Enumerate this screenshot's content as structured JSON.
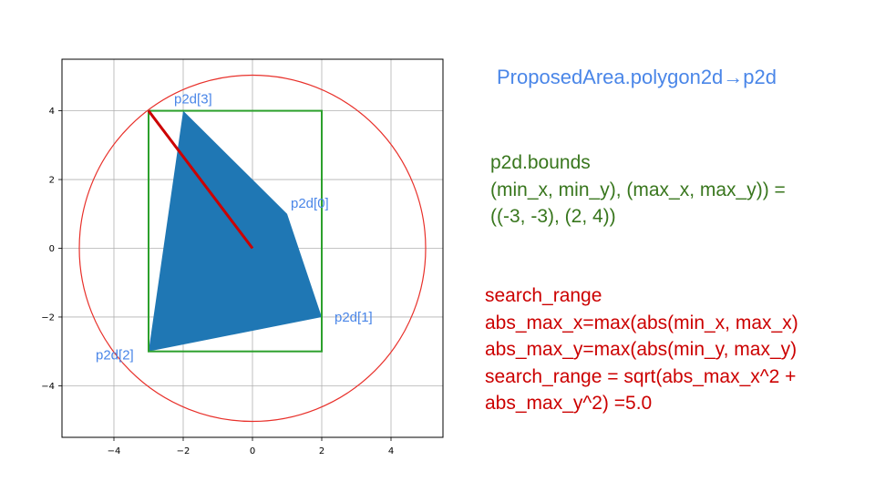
{
  "title": "ProposedArea.polygon2d→p2d",
  "bounds_text": {
    "lines": [
      "p2d.bounds",
      "(min_x, min_y), (max_x, max_y)) =",
      "((-3, -3), (2, 4))"
    ]
  },
  "search_text": {
    "lines": [
      "search_range",
      "abs_max_x=max(abs(min_x, max_x)",
      "abs_max_y=max(abs(min_y, max_y)",
      "search_range = sqrt(abs_max_x^2 +",
      "abs_max_y^2) =5.0"
    ]
  },
  "chart_data": {
    "type": "diagram",
    "xlim": [
      -5.5,
      5.5
    ],
    "ylim": [
      -5.5,
      5.5
    ],
    "x_ticks": [
      -4,
      -2,
      0,
      2,
      4
    ],
    "y_ticks": [
      -4,
      -2,
      0,
      2,
      4
    ],
    "x_tick_labels": [
      "−4",
      "−2",
      "0",
      "2",
      "4"
    ],
    "y_tick_labels": [
      "−4",
      "−2",
      "0",
      "2",
      "4"
    ],
    "grid": true,
    "polygon": {
      "vertices": [
        [
          1,
          1
        ],
        [
          2,
          -2
        ],
        [
          -3,
          -3
        ],
        [
          -2,
          4
        ],
        [
          0,
          2
        ]
      ],
      "color": "#1f77b4"
    },
    "vertex_labels": [
      {
        "text": "p2d[0]",
        "x": 1,
        "y": 1
      },
      {
        "text": "p2d[1]",
        "x": 2,
        "y": -2
      },
      {
        "text": "p2d[2]",
        "x": -3,
        "y": -3
      },
      {
        "text": "p2d[3]",
        "x": -2,
        "y": 4
      }
    ],
    "bounds_rect": {
      "min_x": -3,
      "min_y": -3,
      "max_x": 2,
      "max_y": 4,
      "color": "#2ca02c"
    },
    "circle": {
      "cx": 0,
      "cy": 0,
      "r": 5.0,
      "color": "#e8302a"
    },
    "radius_line": {
      "from": [
        0,
        0
      ],
      "to": [
        -3,
        4
      ],
      "color": "#cc0000"
    },
    "vertex_label_color": "#4a86e8"
  }
}
